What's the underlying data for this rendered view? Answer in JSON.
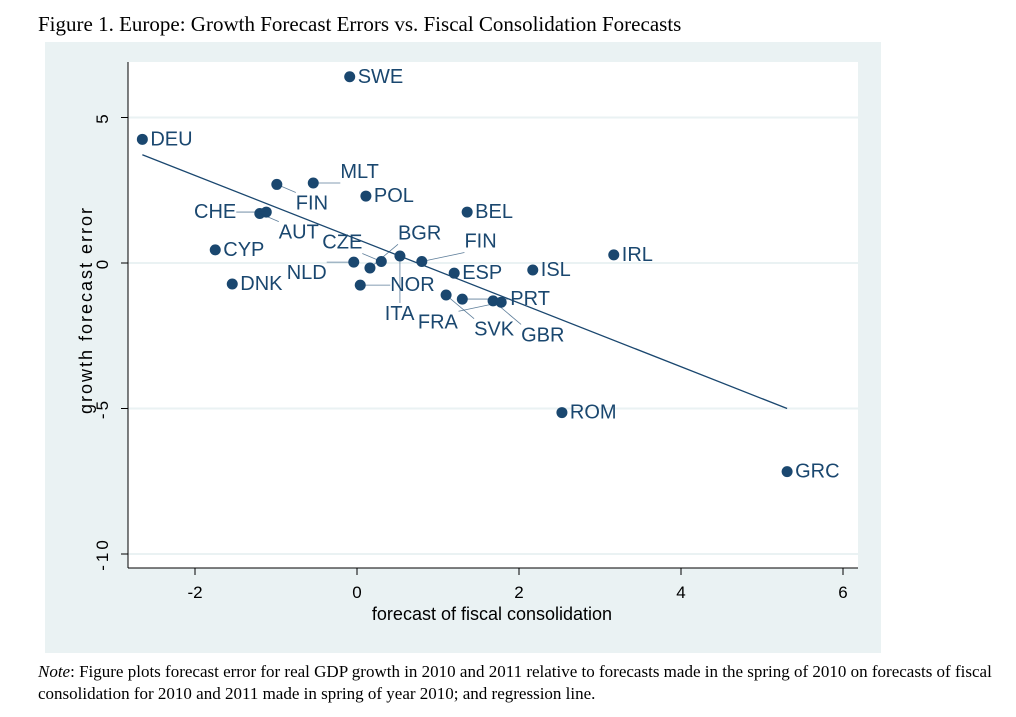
{
  "title": "Figure 1. Europe: Growth Forecast Errors vs. Fiscal Consolidation Forecasts",
  "note": {
    "label": "Note",
    "text": ": Figure plots forecast error for real GDP growth in 2010 and 2011 relative to forecasts made in the spring of 2010 on forecasts of fiscal consolidation for 2010 and 2011 made in spring of year 2010; and regression line."
  },
  "chart_data": {
    "type": "scatter",
    "xlabel": "forecast of fiscal consolidation",
    "ylabel": "growth forecast error",
    "xlim": [
      -2.7,
      6.2
    ],
    "ylim": [
      -10.5,
      6.8
    ],
    "xticks": [
      -2,
      0,
      2,
      4,
      6
    ],
    "yticks": [
      5,
      0,
      -5,
      -10
    ],
    "grid": true,
    "colors": {
      "marker": "#1a476f",
      "panel": "#eaf2f3",
      "grid": "#eaf2f3"
    },
    "points": [
      {
        "label": "SWE",
        "x": -0.09,
        "y": 6.4
      },
      {
        "label": "DEU",
        "x": -2.65,
        "y": 4.25
      },
      {
        "label": "FIN",
        "x": -0.99,
        "y": 2.7
      },
      {
        "label": "MLT",
        "x": -0.54,
        "y": 2.75
      },
      {
        "label": "POL",
        "x": 0.11,
        "y": 2.3
      },
      {
        "label": "BEL",
        "x": 1.36,
        "y": 1.75
      },
      {
        "label": "AUT",
        "x": -1.2,
        "y": 1.7
      },
      {
        "label": "CHE",
        "x": -1.12,
        "y": 1.75
      },
      {
        "label": "CYP",
        "x": -1.75,
        "y": 0.45
      },
      {
        "label": "DNK",
        "x": -1.54,
        "y": -0.72
      },
      {
        "label": "IRL",
        "x": 3.17,
        "y": 0.28
      },
      {
        "label": "ISL",
        "x": 2.17,
        "y": -0.24
      },
      {
        "label": "ESP",
        "x": 1.2,
        "y": -0.35
      },
      {
        "label": "NOR",
        "x": 0.04,
        "y": -0.76
      },
      {
        "label": "NLD",
        "x": -0.04,
        "y": 0.03
      },
      {
        "label": "BGR",
        "x": 0.16,
        "y": -0.17
      },
      {
        "label": "CZE",
        "x": 0.3,
        "y": 0.05
      },
      {
        "label": "ITA",
        "x": 0.53,
        "y": 0.24
      },
      {
        "label": "FIN",
        "x": 0.8,
        "y": 0.05
      },
      {
        "label": "SVK",
        "x": 1.1,
        "y": -1.1
      },
      {
        "label": "PRT",
        "x": 1.3,
        "y": -1.24
      },
      {
        "label": "GBR",
        "x": 1.68,
        "y": -1.3
      },
      {
        "label": "FRA",
        "x": 1.78,
        "y": -1.35
      },
      {
        "label": "ROM",
        "x": 2.53,
        "y": -5.14
      },
      {
        "label": "GRC",
        "x": 5.31,
        "y": -7.17
      }
    ],
    "regression_line": {
      "x": [
        -2.65,
        5.31
      ],
      "y": [
        3.72,
        -5.0
      ]
    }
  }
}
